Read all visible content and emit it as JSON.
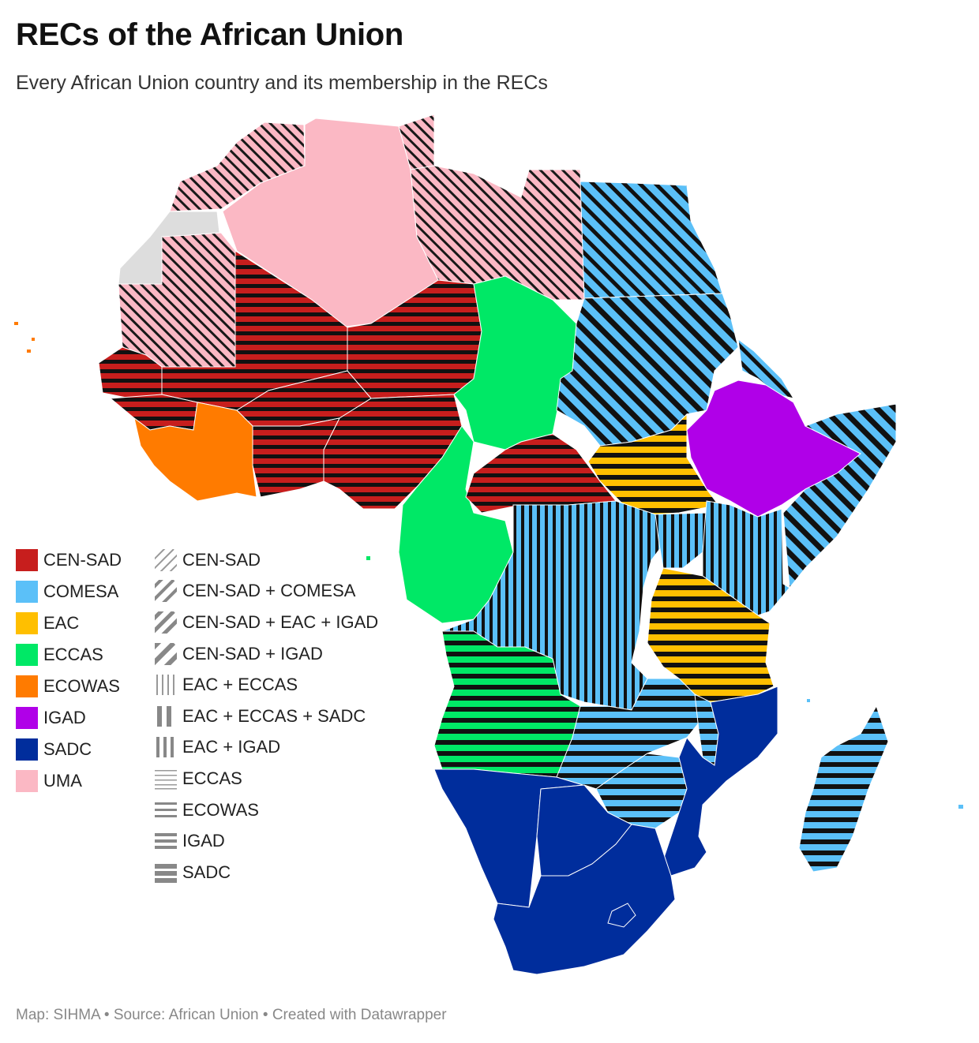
{
  "header": {
    "title": "RECs of the African Union",
    "subtitle": "Every African Union country and its membership in the RECs"
  },
  "colors": {
    "CEN-SAD": "#c71e1d",
    "COMESA": "#5bc0f8",
    "EAC": "#ffbf00",
    "ECCAS": "#00e866",
    "ECOWAS": "#ff7b00",
    "IGAD": "#b000e8",
    "SADC": "#002d9c",
    "UMA": "#fbb8c4",
    "non-member": "#dddddd",
    "pattern": "#888888",
    "stripe": "#111111"
  },
  "legend": {
    "solid": [
      {
        "label": "CEN-SAD",
        "color": "#c71e1d"
      },
      {
        "label": "COMESA",
        "color": "#5bc0f8"
      },
      {
        "label": "EAC",
        "color": "#ffbf00"
      },
      {
        "label": "ECCAS",
        "color": "#00e866"
      },
      {
        "label": "ECOWAS",
        "color": "#ff7b00"
      },
      {
        "label": "IGAD",
        "color": "#b000e8"
      },
      {
        "label": "SADC",
        "color": "#002d9c"
      },
      {
        "label": "UMA",
        "color": "#fbb8c4"
      }
    ],
    "patterns": [
      {
        "label": "CEN-SAD",
        "pattern": "diagonal-thin"
      },
      {
        "label": "CEN-SAD + COMESA",
        "pattern": "diagonal-medium"
      },
      {
        "label": "CEN-SAD + EAC + IGAD",
        "pattern": "diagonal-thick"
      },
      {
        "label": "CEN-SAD + IGAD",
        "pattern": "diagonal-thicker"
      },
      {
        "label": "EAC + ECCAS",
        "pattern": "vertical-thin"
      },
      {
        "label": "EAC + ECCAS + SADC",
        "pattern": "vertical-thick"
      },
      {
        "label": "EAC + IGAD",
        "pattern": "vertical-medium"
      },
      {
        "label": "ECCAS",
        "pattern": "horizontal-thin"
      },
      {
        "label": "ECOWAS",
        "pattern": "horizontal-medium"
      },
      {
        "label": "IGAD",
        "pattern": "horizontal-thick"
      },
      {
        "label": "SADC",
        "pattern": "horizontal-thicker"
      }
    ]
  },
  "footer": {
    "text": "Map: SIHMA • Source: African Union • Created with Datawrapper"
  }
}
